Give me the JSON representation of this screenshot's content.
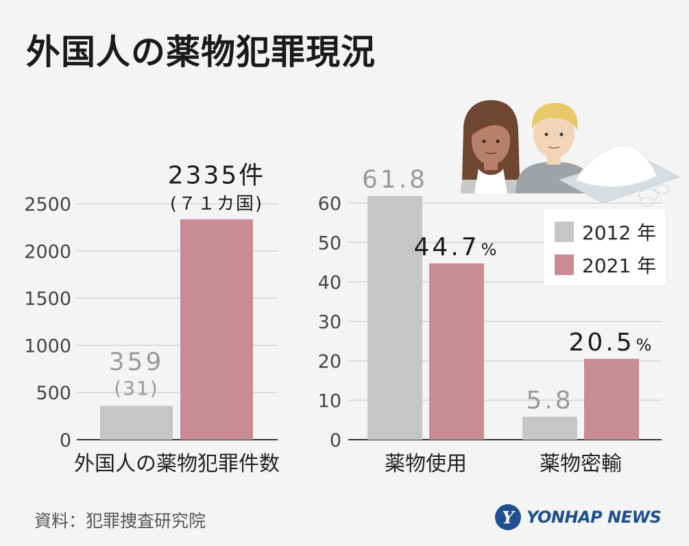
{
  "title": "外国人の薬物犯罪現況",
  "source": "資料：犯罪捜査研究院",
  "logo_text": "YONHAP NEWS",
  "logo_glyph": "Y",
  "colors": {
    "y2012": "#c6c6c6",
    "y2021": "#c98b95",
    "grid": "#d4d4d4",
    "axis": "#333333",
    "label_gray": "#999999"
  },
  "legend": [
    {
      "label": "2012 年",
      "color": "#c6c6c6"
    },
    {
      "label": "2021 年",
      "color": "#c98b95"
    }
  ],
  "icons": [
    "woman-avatar-icon",
    "man-avatar-icon",
    "drug-powder-icon"
  ],
  "chart_data": [
    {
      "type": "bar",
      "title": "外国人の薬物犯罪件数",
      "xlabel": "外国人の薬物犯罪件数",
      "ylabel": "",
      "ylim": [
        0,
        2500
      ],
      "yticks": [
        0,
        500,
        1000,
        1500,
        2000,
        2500
      ],
      "series": [
        {
          "name": "2012 年",
          "value": 359,
          "label": "359",
          "sublabel": "(31)"
        },
        {
          "name": "2021 年",
          "value": 2335,
          "label": "2335件",
          "sublabel": "(７１カ国)"
        }
      ]
    },
    {
      "type": "bar",
      "title": "",
      "xlabel": "",
      "ylabel": "%",
      "ylim": [
        0,
        60
      ],
      "yticks": [
        0,
        10,
        20,
        30,
        40,
        50,
        60
      ],
      "categories": [
        "薬物使用",
        "薬物密輸"
      ],
      "series": [
        {
          "name": "2012 年",
          "values": [
            61.8,
            5.8
          ],
          "labels": [
            "61.8",
            "5.8"
          ],
          "units": [
            "",
            ""
          ]
        },
        {
          "name": "2021 年",
          "values": [
            44.7,
            20.5
          ],
          "labels": [
            "44.7",
            "20.5"
          ],
          "units": [
            "%",
            "%"
          ]
        }
      ]
    }
  ]
}
